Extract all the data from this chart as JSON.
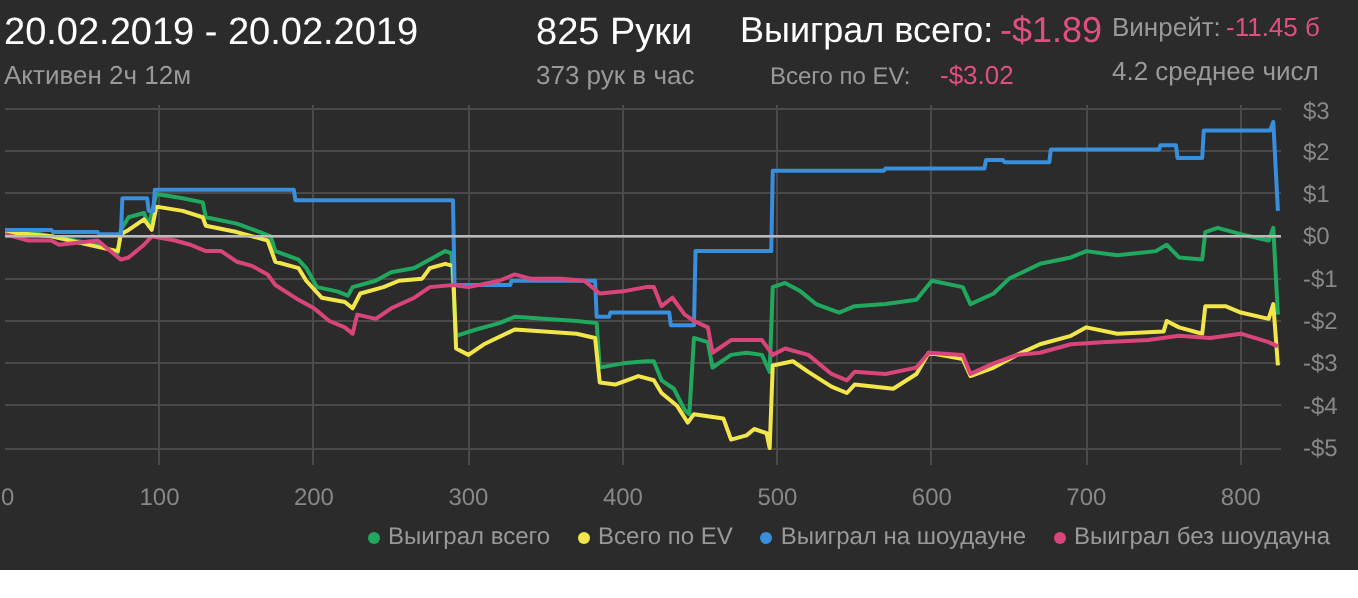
{
  "chart_data": {
    "type": "line",
    "title": "20.02.2019 - 20.02.2019",
    "subtitle": "Активен 2ч 12м",
    "annotations": [
      "825 Руки",
      "373 рук в час",
      "Выиграл всего:",
      "-$1.89",
      "Всего по EV:",
      "-$3.02",
      "Винрейт:",
      "-11.45 б",
      "4.2 среднее числ"
    ],
    "xlim": [
      0,
      826
    ],
    "xticks": [
      0,
      100,
      200,
      300,
      400,
      500,
      600,
      700,
      800
    ],
    "ylim": [
      -5.4,
      3.1
    ],
    "yticks": [
      {
        "value": 3,
        "label": "$3"
      },
      {
        "value": 2,
        "label": "$2"
      },
      {
        "value": 1,
        "label": "$1"
      },
      {
        "value": 0,
        "label": "$0"
      },
      {
        "value": -1,
        "label": "-$1"
      },
      {
        "value": -2,
        "label": "-$2"
      },
      {
        "value": -3,
        "label": "-$3"
      },
      {
        "value": -4,
        "label": "-$4"
      },
      {
        "value": -5,
        "label": "-$5"
      }
    ],
    "grid": true,
    "legend": "bottom",
    "marker": "none",
    "line_style": "solid",
    "ref_lines": [
      {
        "axis": "y",
        "value": 0,
        "label": null,
        "color": "#bbbbbb"
      }
    ],
    "series": [
      {
        "name": "Выиграл всего",
        "color": "#1fa85e",
        "x": [
          0,
          15,
          30,
          60,
          73,
          75,
          80,
          90,
          93,
          98,
          115,
          128,
          130,
          150,
          165,
          172,
          175,
          190,
          195,
          202,
          215,
          222,
          225,
          240,
          250,
          265,
          275,
          285,
          289,
          292,
          305,
          320,
          330,
          370,
          383,
          385,
          400,
          415,
          420,
          425,
          433,
          440,
          443,
          446,
          455,
          458,
          470,
          480,
          490,
          495,
          497,
          505,
          515,
          525,
          540,
          550,
          570,
          590,
          600,
          620,
          625,
          640,
          650,
          670,
          690,
          700,
          720,
          745,
          752,
          760,
          775,
          777,
          785,
          800,
          818,
          821,
          824
        ],
        "values": [
          0.15,
          0.1,
          0.0,
          -0.2,
          -0.4,
          0.15,
          0.45,
          0.55,
          0.25,
          1.0,
          0.9,
          0.8,
          0.45,
          0.3,
          0.1,
          0.0,
          -0.35,
          -0.55,
          -0.75,
          -1.2,
          -1.3,
          -1.4,
          -1.2,
          -1.05,
          -0.85,
          -0.75,
          -0.55,
          -0.35,
          -0.4,
          -2.35,
          -2.2,
          -2.05,
          -1.9,
          -2.0,
          -2.05,
          -3.1,
          -3.0,
          -2.95,
          -2.95,
          -3.4,
          -3.6,
          -4.1,
          -4.2,
          -2.4,
          -2.5,
          -3.1,
          -2.8,
          -2.75,
          -2.8,
          -3.2,
          -1.2,
          -1.1,
          -1.3,
          -1.6,
          -1.8,
          -1.65,
          -1.6,
          -1.5,
          -1.05,
          -1.2,
          -1.6,
          -1.35,
          -1.0,
          -0.65,
          -0.5,
          -0.35,
          -0.45,
          -0.35,
          -0.2,
          -0.5,
          -0.55,
          0.1,
          0.2,
          0.05,
          -0.1,
          0.2,
          -1.85
        ]
      },
      {
        "name": "Всего по EV",
        "color": "#f2e64b",
        "x": [
          0,
          30,
          60,
          73,
          75,
          80,
          90,
          95,
          98,
          115,
          128,
          130,
          150,
          170,
          175,
          190,
          195,
          205,
          220,
          225,
          230,
          245,
          255,
          270,
          275,
          285,
          290,
          292,
          300,
          310,
          330,
          370,
          382,
          385,
          395,
          410,
          420,
          425,
          435,
          442,
          446,
          465,
          470,
          480,
          485,
          493,
          495,
          497,
          510,
          520,
          535,
          545,
          550,
          575,
          590,
          598,
          620,
          625,
          640,
          655,
          670,
          690,
          700,
          720,
          750,
          752,
          760,
          775,
          777,
          790,
          800,
          818,
          821,
          824
        ],
        "values": [
          0.1,
          0.0,
          -0.25,
          -0.35,
          0.05,
          0.15,
          0.4,
          0.15,
          0.7,
          0.6,
          0.45,
          0.25,
          0.1,
          -0.1,
          -0.6,
          -0.75,
          -1.05,
          -1.45,
          -1.55,
          -1.7,
          -1.35,
          -1.2,
          -1.05,
          -1.0,
          -0.75,
          -0.65,
          -0.7,
          -2.65,
          -2.8,
          -2.55,
          -2.2,
          -2.3,
          -2.4,
          -3.45,
          -3.5,
          -3.3,
          -3.4,
          -3.7,
          -4.0,
          -4.4,
          -4.2,
          -4.3,
          -4.8,
          -4.7,
          -4.55,
          -4.65,
          -5.0,
          -3.05,
          -2.95,
          -3.2,
          -3.55,
          -3.7,
          -3.5,
          -3.6,
          -3.25,
          -2.75,
          -2.9,
          -3.3,
          -3.1,
          -2.8,
          -2.55,
          -2.35,
          -2.15,
          -2.3,
          -2.25,
          -2.0,
          -2.15,
          -2.3,
          -1.65,
          -1.65,
          -1.8,
          -1.95,
          -1.6,
          -3.05
        ]
      },
      {
        "name": "Выиграл на шоудауне",
        "color": "#3a8fdc",
        "x": [
          0,
          30,
          31,
          60,
          61,
          75,
          76,
          92,
          93,
          96,
          97,
          187,
          188,
          290,
          291,
          327,
          328,
          382,
          383,
          391,
          392,
          430,
          431,
          446,
          447,
          496,
          497,
          569,
          570,
          634,
          635,
          646,
          647,
          676,
          677,
          747,
          748,
          758,
          759,
          775,
          776,
          819,
          821,
          824
        ],
        "values": [
          0.15,
          0.15,
          0.1,
          0.1,
          0.05,
          0.05,
          0.9,
          0.9,
          0.6,
          0.6,
          1.1,
          1.1,
          0.85,
          0.85,
          -1.15,
          -1.15,
          -1.05,
          -1.05,
          -1.9,
          -1.9,
          -1.8,
          -1.8,
          -2.1,
          -2.1,
          -0.35,
          -0.35,
          1.55,
          1.55,
          1.6,
          1.6,
          1.8,
          1.8,
          1.75,
          1.75,
          2.05,
          2.05,
          2.15,
          2.15,
          1.85,
          1.85,
          2.5,
          2.5,
          2.7,
          0.6
        ]
      },
      {
        "name": "Выиграл без шоудауна",
        "color": "#d9457a",
        "x": [
          0,
          15,
          30,
          35,
          60,
          70,
          75,
          80,
          90,
          95,
          110,
          120,
          130,
          140,
          150,
          160,
          170,
          175,
          190,
          200,
          210,
          220,
          225,
          228,
          240,
          250,
          265,
          275,
          290,
          300,
          320,
          330,
          340,
          360,
          375,
          385,
          400,
          415,
          420,
          425,
          432,
          440,
          446,
          455,
          458,
          470,
          490,
          497,
          505,
          520,
          535,
          545,
          550,
          570,
          590,
          598,
          620,
          625,
          640,
          655,
          670,
          690,
          710,
          740,
          760,
          780,
          800,
          818,
          824
        ],
        "values": [
          0.05,
          -0.1,
          -0.1,
          -0.2,
          -0.1,
          -0.4,
          -0.55,
          -0.5,
          -0.2,
          0.0,
          -0.1,
          -0.2,
          -0.35,
          -0.35,
          -0.6,
          -0.7,
          -0.9,
          -1.15,
          -1.5,
          -1.7,
          -2.0,
          -2.15,
          -2.3,
          -1.85,
          -1.95,
          -1.7,
          -1.45,
          -1.2,
          -1.15,
          -1.2,
          -1.05,
          -0.9,
          -1.0,
          -1.0,
          -1.05,
          -1.35,
          -1.3,
          -1.2,
          -1.2,
          -1.65,
          -1.45,
          -1.85,
          -2.0,
          -2.15,
          -2.75,
          -2.45,
          -2.45,
          -2.8,
          -2.65,
          -2.8,
          -3.25,
          -3.4,
          -3.2,
          -3.25,
          -3.1,
          -2.75,
          -2.8,
          -3.25,
          -3.0,
          -2.8,
          -2.75,
          -2.55,
          -2.5,
          -2.45,
          -2.35,
          -2.4,
          -2.3,
          -2.5,
          -2.6
        ]
      }
    ]
  }
}
